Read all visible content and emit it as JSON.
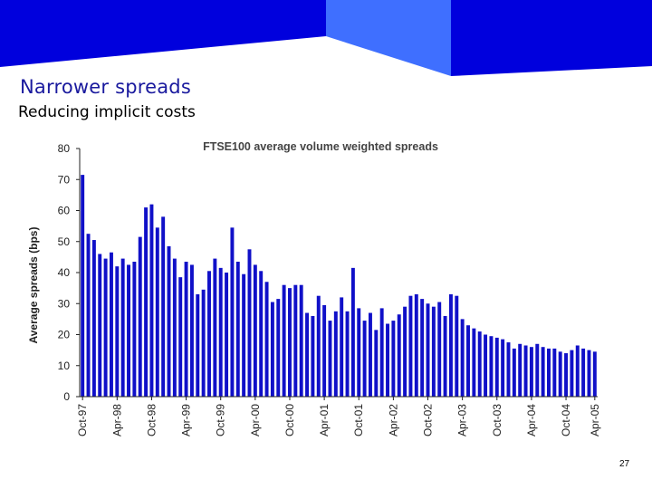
{
  "slide": {
    "title": "Narrower spreads",
    "subtitle": "Reducing implicit costs",
    "page_number": "27"
  },
  "colors": {
    "banner_dark": "#0000dd",
    "banner_light": "#3f6fff",
    "title": "#1a1a9e",
    "bar": "#1010c8"
  },
  "chart_data": {
    "type": "bar",
    "title": "FTSE100 average volume weighted spreads",
    "xlabel": "",
    "ylabel": "Average spreads (bps)",
    "ylim": [
      0,
      80
    ],
    "yticks": [
      0,
      10,
      20,
      30,
      40,
      50,
      60,
      70,
      80
    ],
    "grid": false,
    "legend": "none",
    "x_tick_labels": [
      "Oct-97",
      "Apr-98",
      "Oct-98",
      "Apr-99",
      "Oct-99",
      "Apr-00",
      "Oct-00",
      "Apr-01",
      "Oct-01",
      "Apr-02",
      "Oct-02",
      "Apr-03",
      "Oct-03",
      "Apr-04",
      "Oct-04",
      "Apr-05"
    ],
    "first_period": "Oct-97",
    "last_period": "Apr-05",
    "values": [
      71.5,
      52.5,
      50.5,
      46,
      44.5,
      46.5,
      42,
      44.5,
      42.5,
      43.5,
      51.5,
      61,
      62,
      54.5,
      58,
      48.5,
      44.5,
      38.5,
      43.5,
      42.5,
      33,
      34.5,
      40.5,
      44.5,
      41.5,
      40,
      54.5,
      43.5,
      39.5,
      47.5,
      42.5,
      40.5,
      37,
      30.5,
      31.5,
      36,
      35,
      36,
      36,
      27,
      26,
      32.5,
      29.5,
      24.5,
      27.5,
      32,
      27.5,
      41.5,
      28.5,
      24.5,
      27,
      21.5,
      28.5,
      23.5,
      24.5,
      26.5,
      29,
      32.5,
      33,
      31.5,
      30,
      29,
      30.5,
      26,
      33,
      32.5,
      25,
      23,
      22,
      21,
      20,
      19.5,
      19,
      18.5,
      17.5,
      15.5,
      17,
      16.5,
      16,
      17,
      16,
      15.5,
      15.5,
      14.5,
      14,
      15,
      16.5,
      15.5,
      15,
      14.5
    ]
  }
}
